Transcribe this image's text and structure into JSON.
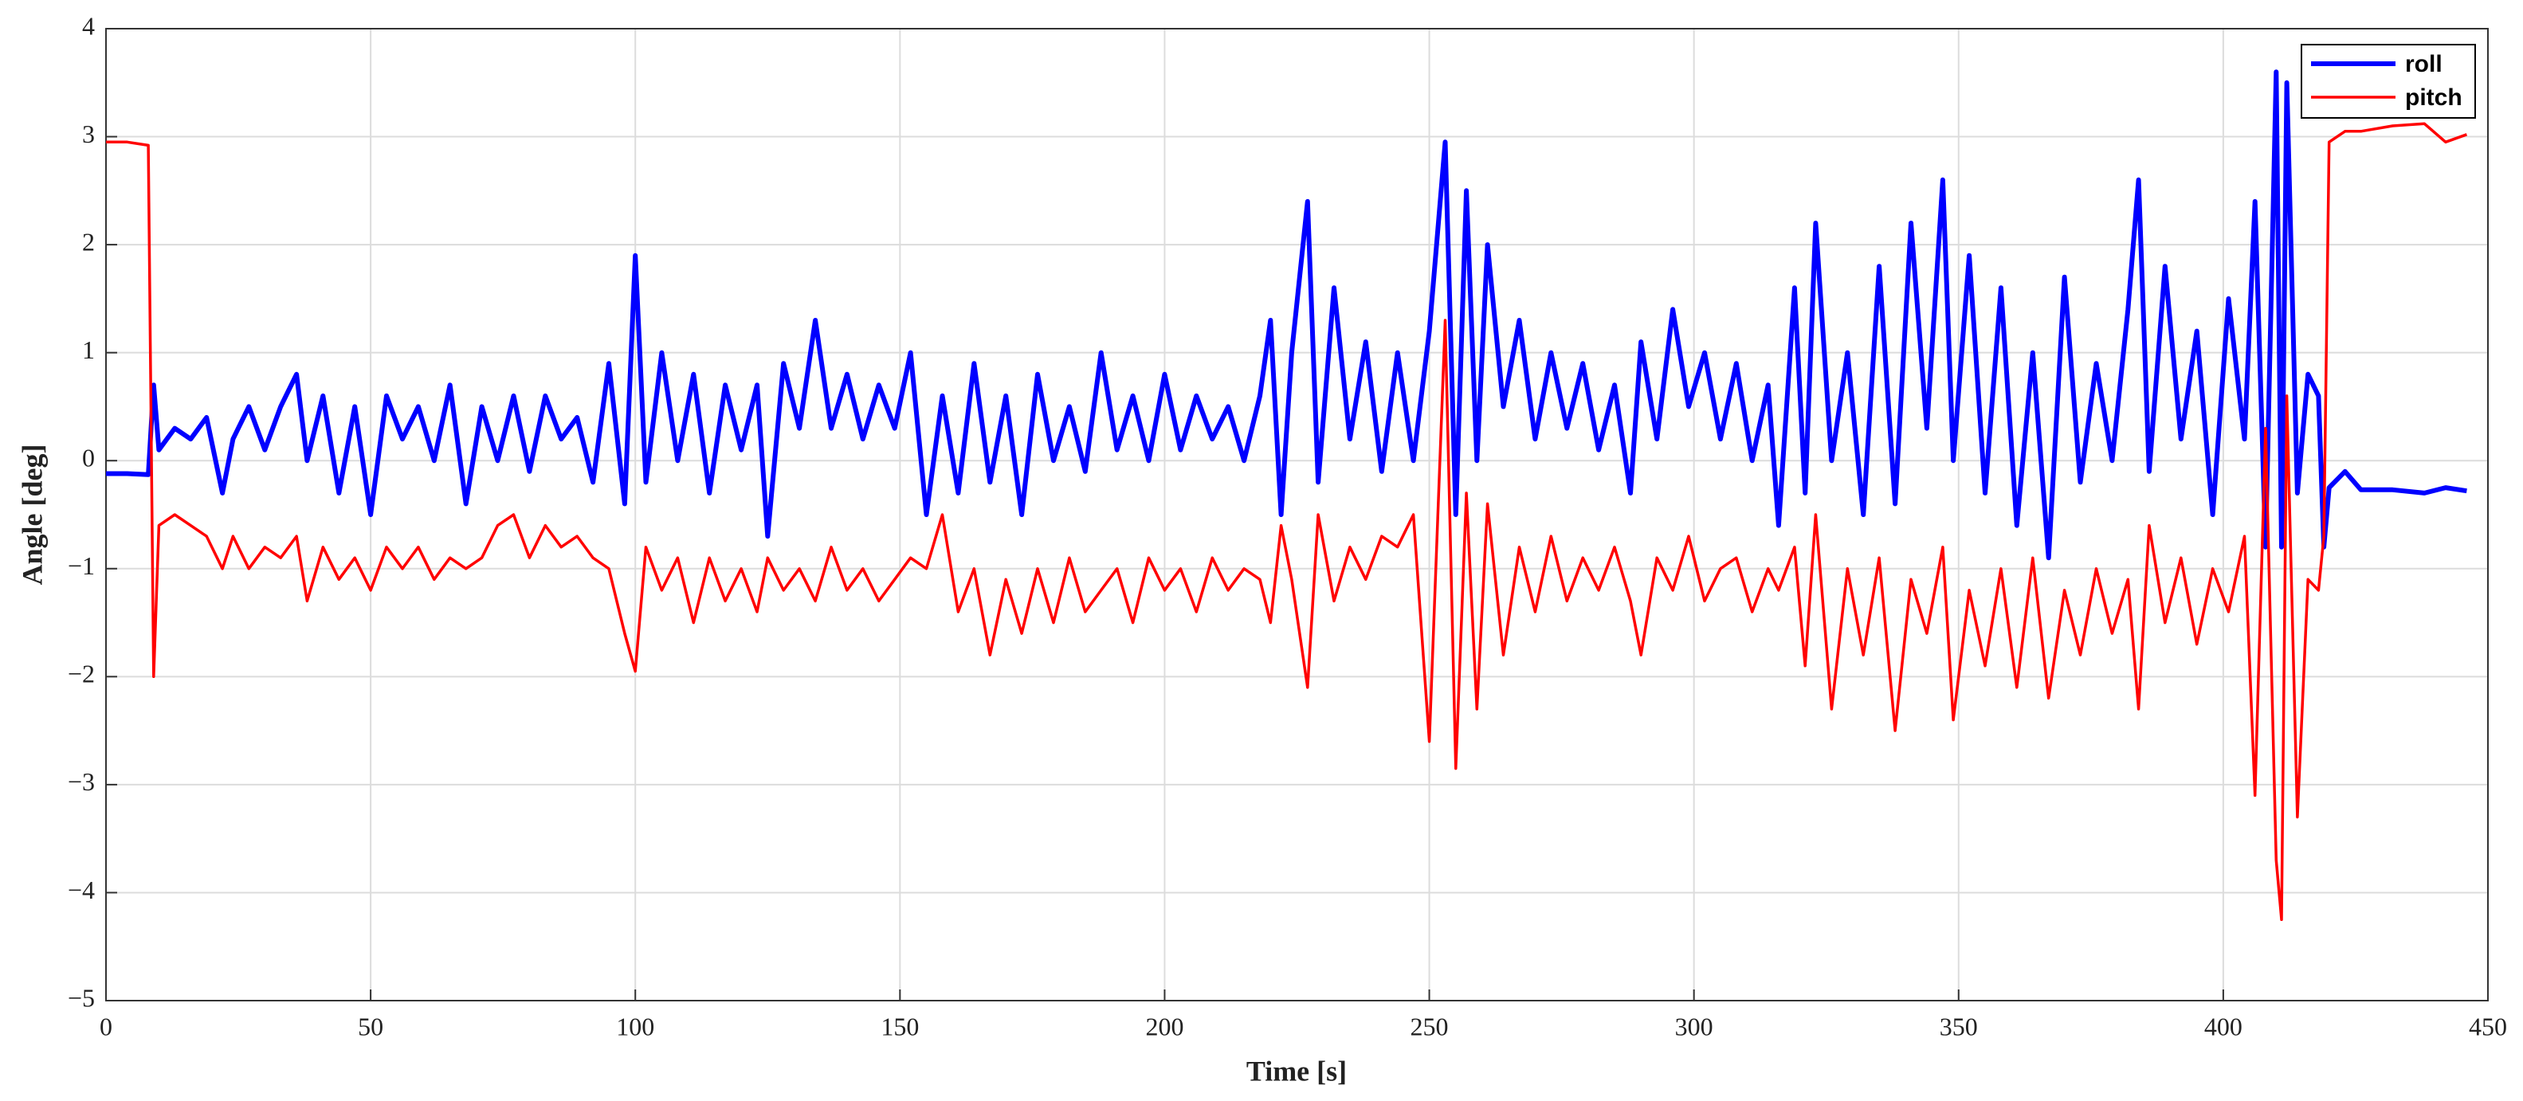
{
  "chart_data": {
    "type": "line",
    "xlabel": "Time [s]",
    "ylabel": "Angle [deg]",
    "xlim": [
      0,
      450
    ],
    "xticks": [
      0,
      50,
      100,
      150,
      200,
      250,
      300,
      350,
      400,
      450
    ],
    "ylim": [
      -5,
      4
    ],
    "yticks": [
      {
        "value": -5,
        "label": "−5"
      },
      {
        "value": -4,
        "label": "−4"
      },
      {
        "value": -3,
        "label": "−3"
      },
      {
        "value": -2,
        "label": "−2"
      },
      {
        "value": -1,
        "label": "−1"
      },
      0,
      1,
      2,
      3,
      4
    ],
    "grid": true,
    "legend": "upper right",
    "x": [
      0,
      4,
      8,
      9,
      10,
      13,
      16,
      19,
      22,
      24,
      27,
      30,
      33,
      36,
      38,
      41,
      44,
      47,
      50,
      53,
      56,
      59,
      62,
      65,
      68,
      71,
      74,
      77,
      80,
      83,
      86,
      89,
      92,
      95,
      98,
      100,
      102,
      105,
      108,
      111,
      114,
      117,
      120,
      123,
      125,
      128,
      131,
      134,
      137,
      140,
      143,
      146,
      149,
      152,
      155,
      158,
      161,
      164,
      167,
      170,
      173,
      176,
      179,
      182,
      185,
      188,
      191,
      194,
      197,
      200,
      203,
      206,
      209,
      212,
      215,
      218,
      220,
      222,
      224,
      227,
      229,
      232,
      235,
      238,
      241,
      244,
      247,
      250,
      253,
      255,
      257,
      259,
      261,
      264,
      267,
      270,
      273,
      276,
      279,
      282,
      285,
      288,
      290,
      293,
      296,
      299,
      302,
      305,
      308,
      311,
      314,
      316,
      319,
      321,
      323,
      326,
      329,
      332,
      335,
      338,
      341,
      344,
      347,
      349,
      352,
      355,
      358,
      361,
      364,
      367,
      370,
      373,
      376,
      379,
      382,
      384,
      386,
      389,
      392,
      395,
      398,
      401,
      404,
      406,
      408,
      410,
      411,
      412,
      414,
      416,
      418,
      419,
      420,
      423,
      426,
      432,
      438,
      442,
      446
    ],
    "series": [
      {
        "name": "roll",
        "color": "#0000ff",
        "values": [
          -0.12,
          -0.12,
          -0.13,
          0.7,
          0.1,
          0.3,
          0.2,
          0.4,
          -0.3,
          0.2,
          0.5,
          0.1,
          0.5,
          0.8,
          0.0,
          0.6,
          -0.3,
          0.5,
          -0.5,
          0.6,
          0.2,
          0.5,
          0.0,
          0.7,
          -0.4,
          0.5,
          0.0,
          0.6,
          -0.1,
          0.6,
          0.2,
          0.4,
          -0.2,
          0.9,
          -0.4,
          1.9,
          -0.2,
          1.0,
          0.0,
          0.8,
          -0.3,
          0.7,
          0.1,
          0.7,
          -0.7,
          0.9,
          0.3,
          1.3,
          0.3,
          0.8,
          0.2,
          0.7,
          0.3,
          1.0,
          -0.5,
          0.6,
          -0.3,
          0.9,
          -0.2,
          0.6,
          -0.5,
          0.8,
          0.0,
          0.5,
          -0.1,
          1.0,
          0.1,
          0.6,
          0.0,
          0.8,
          0.1,
          0.6,
          0.2,
          0.5,
          0.0,
          0.6,
          1.3,
          -0.5,
          1.0,
          2.4,
          -0.2,
          1.6,
          0.2,
          1.1,
          -0.1,
          1.0,
          0.0,
          1.2,
          2.95,
          -0.5,
          2.5,
          0.0,
          2.0,
          0.5,
          1.3,
          0.2,
          1.0,
          0.3,
          0.9,
          0.1,
          0.7,
          -0.3,
          1.1,
          0.2,
          1.4,
          0.5,
          1.0,
          0.2,
          0.9,
          0.0,
          0.7,
          -0.6,
          1.6,
          -0.3,
          2.2,
          0.0,
          1.0,
          -0.5,
          1.8,
          -0.4,
          2.2,
          0.3,
          2.6,
          0.0,
          1.9,
          -0.3,
          1.6,
          -0.6,
          1.0,
          -0.9,
          1.7,
          -0.2,
          0.9,
          0.0,
          1.4,
          2.6,
          -0.1,
          1.8,
          0.2,
          1.2,
          -0.5,
          1.5,
          0.2,
          2.4,
          -0.8,
          3.6,
          -0.8,
          3.5,
          -0.3,
          0.8,
          0.6,
          -0.8,
          -0.25,
          -0.1,
          -0.27,
          -0.27,
          -0.3,
          -0.25,
          -0.28
        ]
      },
      {
        "name": "pitch",
        "color": "#ff0000",
        "values": [
          2.95,
          2.95,
          2.92,
          -2.0,
          -0.6,
          -0.5,
          -0.6,
          -0.7,
          -1.0,
          -0.7,
          -1.0,
          -0.8,
          -0.9,
          -0.7,
          -1.3,
          -0.8,
          -1.1,
          -0.9,
          -1.2,
          -0.8,
          -1.0,
          -0.8,
          -1.1,
          -0.9,
          -1.0,
          -0.9,
          -0.6,
          -0.5,
          -0.9,
          -0.6,
          -0.8,
          -0.7,
          -0.9,
          -1.0,
          -1.6,
          -1.95,
          -0.8,
          -1.2,
          -0.9,
          -1.5,
          -0.9,
          -1.3,
          -1.0,
          -1.4,
          -0.9,
          -1.2,
          -1.0,
          -1.3,
          -0.8,
          -1.2,
          -1.0,
          -1.3,
          -1.1,
          -0.9,
          -1.0,
          -0.5,
          -1.4,
          -1.0,
          -1.8,
          -1.1,
          -1.6,
          -1.0,
          -1.5,
          -0.9,
          -1.4,
          -1.2,
          -1.0,
          -1.5,
          -0.9,
          -1.2,
          -1.0,
          -1.4,
          -0.9,
          -1.2,
          -1.0,
          -1.1,
          -1.5,
          -0.6,
          -1.1,
          -2.1,
          -0.5,
          -1.3,
          -0.8,
          -1.1,
          -0.7,
          -0.8,
          -0.5,
          -2.6,
          1.3,
          -2.85,
          -0.3,
          -2.3,
          -0.4,
          -1.8,
          -0.8,
          -1.4,
          -0.7,
          -1.3,
          -0.9,
          -1.2,
          -0.8,
          -1.3,
          -1.8,
          -0.9,
          -1.2,
          -0.7,
          -1.3,
          -1.0,
          -0.9,
          -1.4,
          -1.0,
          -1.2,
          -0.8,
          -1.9,
          -0.5,
          -2.3,
          -1.0,
          -1.8,
          -0.9,
          -2.5,
          -1.1,
          -1.6,
          -0.8,
          -2.4,
          -1.2,
          -1.9,
          -1.0,
          -2.1,
          -0.9,
          -2.2,
          -1.2,
          -1.8,
          -1.0,
          -1.6,
          -1.1,
          -2.3,
          -0.6,
          -1.5,
          -0.9,
          -1.7,
          -1.0,
          -1.4,
          -0.7,
          -3.1,
          0.3,
          -3.7,
          -4.25,
          0.6,
          -3.3,
          -1.1,
          -1.2,
          -0.7,
          2.95,
          3.05,
          3.05,
          3.1,
          3.12,
          2.95,
          3.02
        ]
      }
    ]
  }
}
